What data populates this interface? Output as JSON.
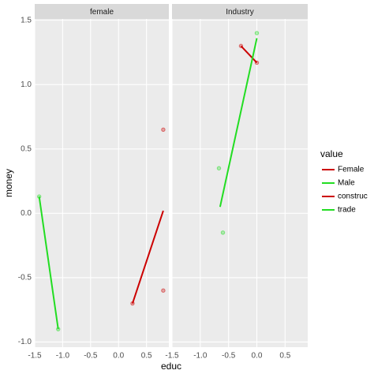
{
  "chart_data": {
    "type": "scatter",
    "x_label": "educ",
    "y_label": "money",
    "xlim": [
      -1.5,
      0.9
    ],
    "xticks": [
      -1.5,
      {
        "value": -1.0,
        "label": "-1.0"
      },
      -0.5,
      {
        "value": 0,
        "label": "0.0"
      },
      0.5
    ],
    "ylim": [
      -1.04,
      1.51
    ],
    "yticks": [
      {
        "value": -1.0,
        "label": "-1.0"
      },
      -0.5,
      {
        "value": 0,
        "label": "0.0"
      },
      0.5,
      {
        "value": 1.0,
        "label": "1.0"
      },
      1.5
    ],
    "grid": true,
    "legend_title": "value",
    "legend_position": "right",
    "panels": [
      {
        "title": "female",
        "series": [
          {
            "name": "Female",
            "color": "#cc0000",
            "x": [
              0.8,
              0.8,
              0.25
            ],
            "y": [
              0.65,
              -0.6,
              -0.7
            ],
            "fit_x": [
              0.25,
              0.8
            ],
            "fit_y": [
              -0.7,
              0.02
            ]
          },
          {
            "name": "Male",
            "color": "#22dd22",
            "x": [
              -1.42,
              -1.08
            ],
            "y": [
              0.13,
              -0.9
            ],
            "fit_x": [
              -1.42,
              -1.08
            ],
            "fit_y": [
              0.13,
              -0.9
            ]
          }
        ]
      },
      {
        "title": "Industry",
        "series": [
          {
            "name": "construc",
            "color": "#cc0000",
            "x": [
              -0.28,
              0.0
            ],
            "y": [
              1.3,
              1.17
            ],
            "fit_x": [
              -0.28,
              0.0
            ],
            "fit_y": [
              1.3,
              1.17
            ]
          },
          {
            "name": "trade",
            "color": "#22dd22",
            "x": [
              -0.67,
              -0.6,
              0.0
            ],
            "y": [
              0.35,
              -0.15,
              1.4
            ],
            "fit_x": [
              -0.65,
              0.0
            ],
            "fit_y": [
              0.05,
              1.36
            ]
          }
        ]
      }
    ]
  }
}
